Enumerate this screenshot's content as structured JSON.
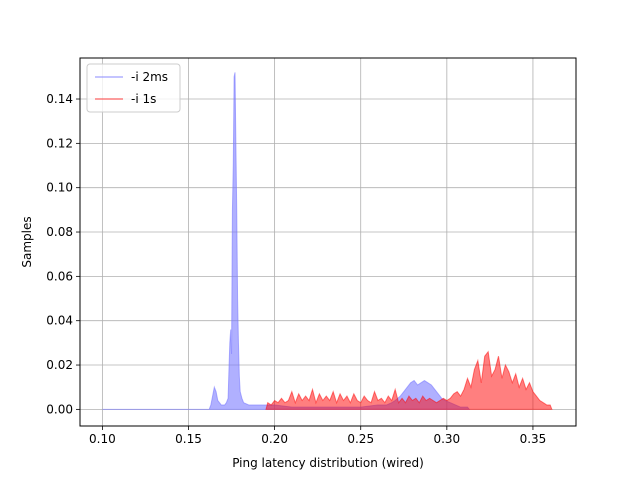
{
  "chart_data": {
    "type": "area",
    "title": "",
    "xlabel": "Ping latency distribution (wired)",
    "ylabel": "Samples",
    "xlim": [
      0.087,
      0.375
    ],
    "ylim": [
      -0.0075,
      0.1585
    ],
    "xticks": [
      0.1,
      0.15,
      0.2,
      0.25,
      0.3,
      0.35
    ],
    "xtick_labels": [
      "0.10",
      "0.15",
      "0.20",
      "0.25",
      "0.30",
      "0.35"
    ],
    "yticks": [
      0.0,
      0.02,
      0.04,
      0.06,
      0.08,
      0.1,
      0.12,
      0.14
    ],
    "ytick_labels": [
      "0.00",
      "0.02",
      "0.04",
      "0.06",
      "0.08",
      "0.10",
      "0.12",
      "0.14"
    ],
    "grid": true,
    "legend_position": "top-left",
    "series": [
      {
        "name": "-i 2ms",
        "color": "#7b7bff",
        "alpha": 0.6,
        "points": [
          [
            0.1,
            0.0
          ],
          [
            0.15,
            0.0
          ],
          [
            0.162,
            0.0
          ],
          [
            0.163,
            0.002
          ],
          [
            0.164,
            0.006
          ],
          [
            0.165,
            0.01
          ],
          [
            0.166,
            0.008
          ],
          [
            0.167,
            0.004
          ],
          [
            0.168,
            0.003
          ],
          [
            0.169,
            0.002
          ],
          [
            0.17,
            0.002
          ],
          [
            0.171,
            0.002
          ],
          [
            0.172,
            0.003
          ],
          [
            0.173,
            0.005
          ],
          [
            0.1735,
            0.018
          ],
          [
            0.174,
            0.03
          ],
          [
            0.1745,
            0.036
          ],
          [
            0.175,
            0.025
          ],
          [
            0.1755,
            0.09
          ],
          [
            0.176,
            0.11
          ],
          [
            0.1765,
            0.15
          ],
          [
            0.177,
            0.152
          ],
          [
            0.1775,
            0.12
          ],
          [
            0.178,
            0.09
          ],
          [
            0.1785,
            0.05
          ],
          [
            0.179,
            0.03
          ],
          [
            0.1795,
            0.015
          ],
          [
            0.18,
            0.008
          ],
          [
            0.181,
            0.005
          ],
          [
            0.182,
            0.003
          ],
          [
            0.185,
            0.002
          ],
          [
            0.19,
            0.002
          ],
          [
            0.195,
            0.002
          ],
          [
            0.2,
            0.002
          ],
          [
            0.21,
            0.001
          ],
          [
            0.22,
            0.001
          ],
          [
            0.23,
            0.001
          ],
          [
            0.24,
            0.001
          ],
          [
            0.25,
            0.001
          ],
          [
            0.26,
            0.002
          ],
          [
            0.265,
            0.002
          ],
          [
            0.268,
            0.003
          ],
          [
            0.27,
            0.004
          ],
          [
            0.273,
            0.006
          ],
          [
            0.275,
            0.008
          ],
          [
            0.277,
            0.01
          ],
          [
            0.279,
            0.012
          ],
          [
            0.281,
            0.013
          ],
          [
            0.283,
            0.011
          ],
          [
            0.285,
            0.012
          ],
          [
            0.287,
            0.013
          ],
          [
            0.289,
            0.012
          ],
          [
            0.291,
            0.011
          ],
          [
            0.293,
            0.009
          ],
          [
            0.295,
            0.007
          ],
          [
            0.297,
            0.005
          ],
          [
            0.299,
            0.004
          ],
          [
            0.302,
            0.003
          ],
          [
            0.305,
            0.002
          ],
          [
            0.308,
            0.001
          ],
          [
            0.312,
            0.001
          ],
          [
            0.313,
            0.0
          ]
        ]
      },
      {
        "name": "-i 1s",
        "color": "#ff0000",
        "alpha": 0.5,
        "points": [
          [
            0.195,
            0.0
          ],
          [
            0.196,
            0.003
          ],
          [
            0.198,
            0.002
          ],
          [
            0.2,
            0.004
          ],
          [
            0.202,
            0.003
          ],
          [
            0.204,
            0.005
          ],
          [
            0.206,
            0.003
          ],
          [
            0.208,
            0.004
          ],
          [
            0.21,
            0.008
          ],
          [
            0.212,
            0.003
          ],
          [
            0.214,
            0.007
          ],
          [
            0.216,
            0.004
          ],
          [
            0.218,
            0.006
          ],
          [
            0.22,
            0.004
          ],
          [
            0.222,
            0.009
          ],
          [
            0.224,
            0.003
          ],
          [
            0.226,
            0.007
          ],
          [
            0.228,
            0.004
          ],
          [
            0.23,
            0.006
          ],
          [
            0.232,
            0.004
          ],
          [
            0.234,
            0.008
          ],
          [
            0.236,
            0.003
          ],
          [
            0.238,
            0.007
          ],
          [
            0.24,
            0.004
          ],
          [
            0.242,
            0.006
          ],
          [
            0.244,
            0.003
          ],
          [
            0.246,
            0.007
          ],
          [
            0.248,
            0.004
          ],
          [
            0.25,
            0.003
          ],
          [
            0.252,
            0.006
          ],
          [
            0.254,
            0.004
          ],
          [
            0.256,
            0.003
          ],
          [
            0.258,
            0.008
          ],
          [
            0.26,
            0.004
          ],
          [
            0.262,
            0.005
          ],
          [
            0.264,
            0.003
          ],
          [
            0.266,
            0.006
          ],
          [
            0.268,
            0.004
          ],
          [
            0.27,
            0.009
          ],
          [
            0.272,
            0.003
          ],
          [
            0.274,
            0.005
          ],
          [
            0.276,
            0.003
          ],
          [
            0.278,
            0.006
          ],
          [
            0.28,
            0.004
          ],
          [
            0.282,
            0.005
          ],
          [
            0.284,
            0.003
          ],
          [
            0.286,
            0.006
          ],
          [
            0.288,
            0.004
          ],
          [
            0.29,
            0.005
          ],
          [
            0.292,
            0.004
          ],
          [
            0.294,
            0.003
          ],
          [
            0.296,
            0.004
          ],
          [
            0.298,
            0.005
          ],
          [
            0.3,
            0.004
          ],
          [
            0.302,
            0.005
          ],
          [
            0.304,
            0.007
          ],
          [
            0.306,
            0.008
          ],
          [
            0.308,
            0.006
          ],
          [
            0.31,
            0.009
          ],
          [
            0.312,
            0.014
          ],
          [
            0.314,
            0.01
          ],
          [
            0.316,
            0.018
          ],
          [
            0.318,
            0.022
          ],
          [
            0.32,
            0.012
          ],
          [
            0.322,
            0.024
          ],
          [
            0.324,
            0.026
          ],
          [
            0.326,
            0.015
          ],
          [
            0.328,
            0.018
          ],
          [
            0.33,
            0.024
          ],
          [
            0.332,
            0.014
          ],
          [
            0.334,
            0.02
          ],
          [
            0.336,
            0.017
          ],
          [
            0.338,
            0.012
          ],
          [
            0.34,
            0.016
          ],
          [
            0.342,
            0.01
          ],
          [
            0.344,
            0.014
          ],
          [
            0.346,
            0.009
          ],
          [
            0.348,
            0.012
          ],
          [
            0.35,
            0.008
          ],
          [
            0.352,
            0.006
          ],
          [
            0.354,
            0.004
          ],
          [
            0.356,
            0.003
          ],
          [
            0.358,
            0.002
          ],
          [
            0.36,
            0.002
          ],
          [
            0.361,
            0.0
          ]
        ]
      }
    ]
  }
}
